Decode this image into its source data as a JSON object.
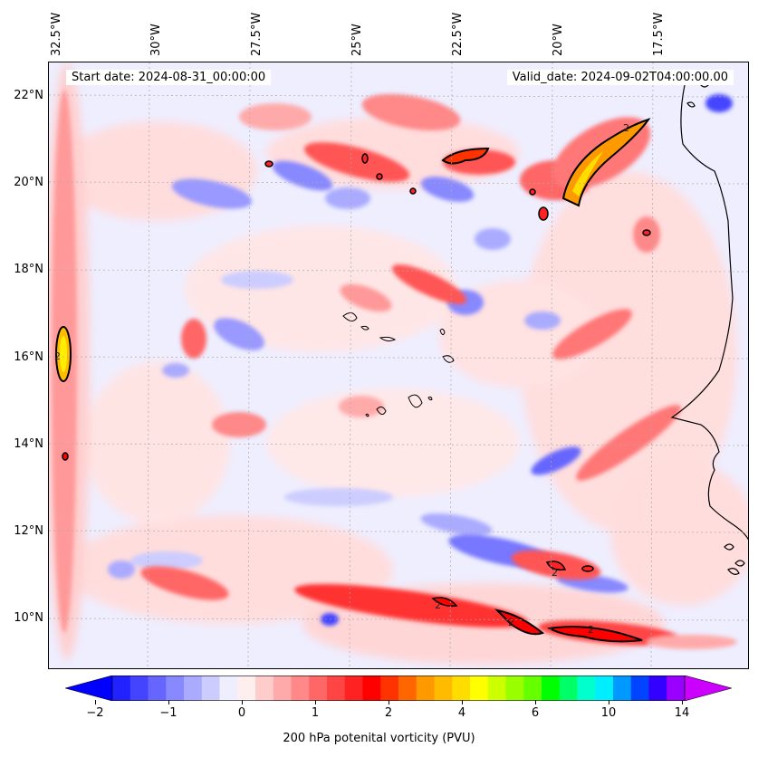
{
  "map": {
    "start_date": "Start date: 2024-08-31_00:00:00",
    "valid_date": "Valid_date: 2024-09-02T04:00:00.00",
    "lon_labels": [
      "32.5°W",
      "30°W",
      "27.5°W",
      "25°W",
      "22.5°W",
      "20°W",
      "17.5°W"
    ],
    "lat_labels": [
      "22°N",
      "20°N",
      "18°N",
      "16°N",
      "14°N",
      "12°N",
      "10°N"
    ],
    "contour_label": "2",
    "features": [
      {
        "name": "vorticity-max-west-edge",
        "lon": -32.5,
        "lat": 16.0,
        "level": "high"
      },
      {
        "name": "vorticity-max-north-20w",
        "lon": -19.5,
        "lat": 20.5,
        "level": "high"
      },
      {
        "name": "vorticity-max-north-22w",
        "lon": -22.0,
        "lat": 20.6,
        "level": "medium"
      },
      {
        "name": "vorticity-band-south",
        "lon": -20.0,
        "lat": 9.8,
        "level": "medium"
      }
    ]
  },
  "colorbar": {
    "ticks": [
      "−2",
      "−1",
      "0",
      "1",
      "2",
      "4",
      "6",
      "10",
      "14"
    ],
    "label": "200 hPa potenital vorticity (PVU)",
    "colors": [
      "#0000ff",
      "#2222ff",
      "#4444ff",
      "#6666ff",
      "#8888ff",
      "#aaaaff",
      "#ccccff",
      "#eeeeff",
      "#ffeeee",
      "#ffcccc",
      "#ffaaaa",
      "#ff8888",
      "#ff6666",
      "#ff4444",
      "#ff2222",
      "#ff0000",
      "#ff3300",
      "#ff6600",
      "#ff9900",
      "#ffbb00",
      "#ffdd00",
      "#ffff00",
      "#ccff00",
      "#99ff00",
      "#66ff00",
      "#00ff00",
      "#00ff66",
      "#00ffcc",
      "#00eeff",
      "#0099ff",
      "#0044ff",
      "#3300ff",
      "#9900ff",
      "#cc00ff"
    ]
  }
}
